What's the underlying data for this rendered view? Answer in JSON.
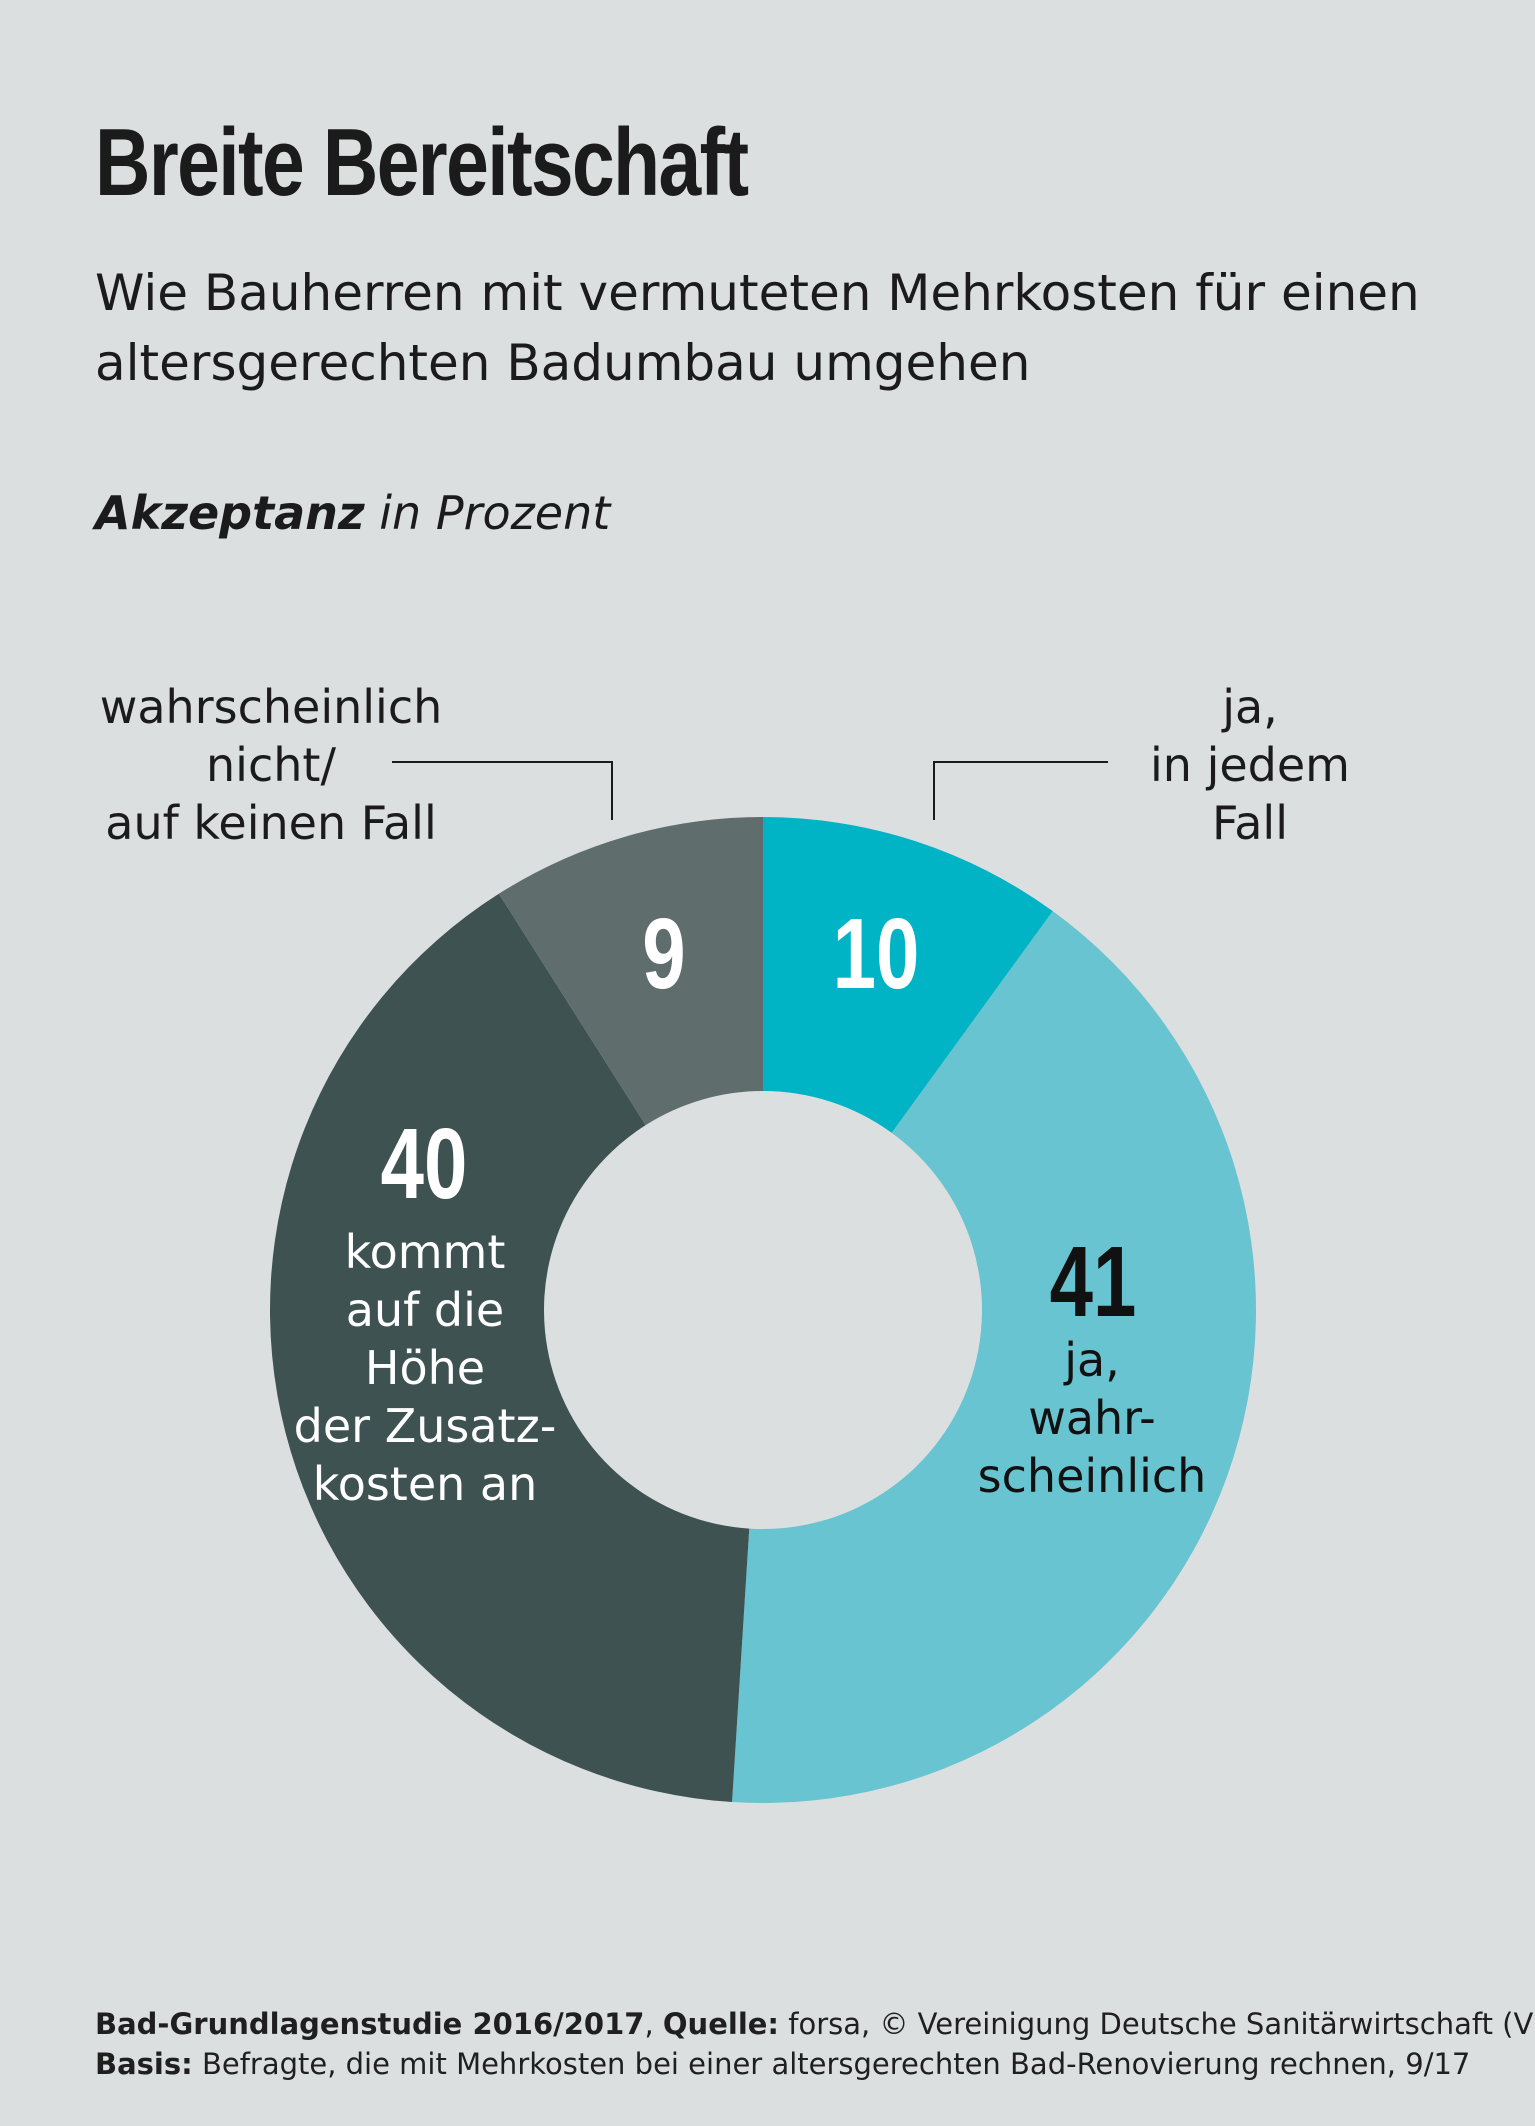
{
  "header": {
    "title": "Breite Bereitschaft",
    "subtitle": "Wie Bauherren mit vermuteten Mehrkosten für einen altersgerechten Badumbau umgehen",
    "unit_bold": "Akzeptanz",
    "unit_rest": " in Prozent"
  },
  "chart_data": {
    "type": "pie",
    "title": "Breite Bereitschaft",
    "subtitle": "Wie Bauherren mit vermuteten Mehrkosten für einen altersgerechten Badumbau umgehen",
    "unit": "Akzeptanz in Prozent",
    "donut": true,
    "start": "top, clockwise",
    "slices": [
      {
        "label": "ja, in jedem Fall",
        "value": 10,
        "color": "#00b4c6",
        "label_color": "#ffffff",
        "value_label": "10"
      },
      {
        "label": "ja, wahr-scheinlich",
        "value": 41,
        "color": "#67c4d0",
        "label_color": "#111111",
        "value_label": "41"
      },
      {
        "label": "kommt auf die Höhe der Zusatzkosten an",
        "value": 40,
        "color": "#3e5251",
        "label_color": "#ffffff",
        "value_label": "40"
      },
      {
        "label": "wahrscheinlich nicht/ auf keinen Fall",
        "value": 9,
        "color": "#5f6e6c",
        "label_color": "#ffffff",
        "value_label": "9"
      }
    ],
    "inner_labels": {
      "slice_1": [
        "ja,",
        "wahr-",
        "scheinlich"
      ],
      "slice_2": [
        "kommt",
        "auf die",
        "Höhe",
        "der Zusatz-",
        "kosten an"
      ]
    },
    "outer_labels": {
      "slice_0": [
        "ja,",
        "in jedem",
        "Fall"
      ],
      "slice_3": [
        "wahrscheinlich",
        "nicht/",
        "auf keinen Fall"
      ]
    }
  },
  "footer": {
    "line1_b1": "Bad-Grundlagenstudie 2016/2017",
    "line1_t1": ", ",
    "line1_b2": "Quelle:",
    "line1_t2": " forsa, © Vereinigung Deutsche Sanitärwirtschaft (VDS),",
    "line2_b": "Basis:",
    "line2_t": " Befragte, die mit Mehrkosten bei einer altersgerechten Bad-Renovierung rechnen, 9/17"
  }
}
